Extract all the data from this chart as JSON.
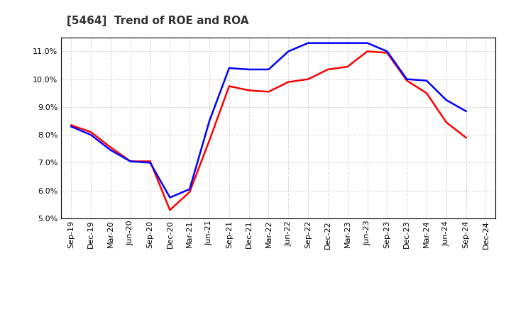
{
  "title": "[5464]  Trend of ROE and ROA",
  "x_labels": [
    "Sep-19",
    "Dec-19",
    "Mar-20",
    "Jun-20",
    "Sep-20",
    "Dec-20",
    "Mar-21",
    "Jun-21",
    "Sep-21",
    "Dec-21",
    "Mar-22",
    "Jun-22",
    "Sep-22",
    "Dec-22",
    "Mar-23",
    "Jun-23",
    "Sep-23",
    "Dec-23",
    "Mar-24",
    "Jun-24",
    "Sep-24",
    "Dec-24"
  ],
  "roe": [
    8.35,
    8.1,
    7.55,
    7.05,
    7.05,
    5.3,
    5.95,
    7.8,
    9.75,
    9.6,
    9.55,
    9.9,
    10.0,
    10.35,
    10.45,
    11.0,
    10.95,
    9.95,
    9.5,
    8.45,
    7.9,
    null
  ],
  "roa": [
    8.3,
    8.0,
    7.45,
    7.05,
    7.0,
    5.75,
    6.05,
    8.5,
    10.4,
    10.35,
    10.35,
    11.0,
    11.3,
    11.3,
    11.3,
    11.3,
    11.0,
    10.0,
    9.95,
    9.25,
    8.85,
    null
  ],
  "ylim": [
    5.0,
    11.5
  ],
  "yticks": [
    5.0,
    6.0,
    7.0,
    8.0,
    9.0,
    10.0,
    11.0
  ],
  "roe_color": "#ff0000",
  "roa_color": "#0000ff",
  "background_color": "#ffffff",
  "grid_color": "#b0b0b0",
  "linewidth": 1.8,
  "title_fontsize": 11,
  "tick_fontsize": 8
}
